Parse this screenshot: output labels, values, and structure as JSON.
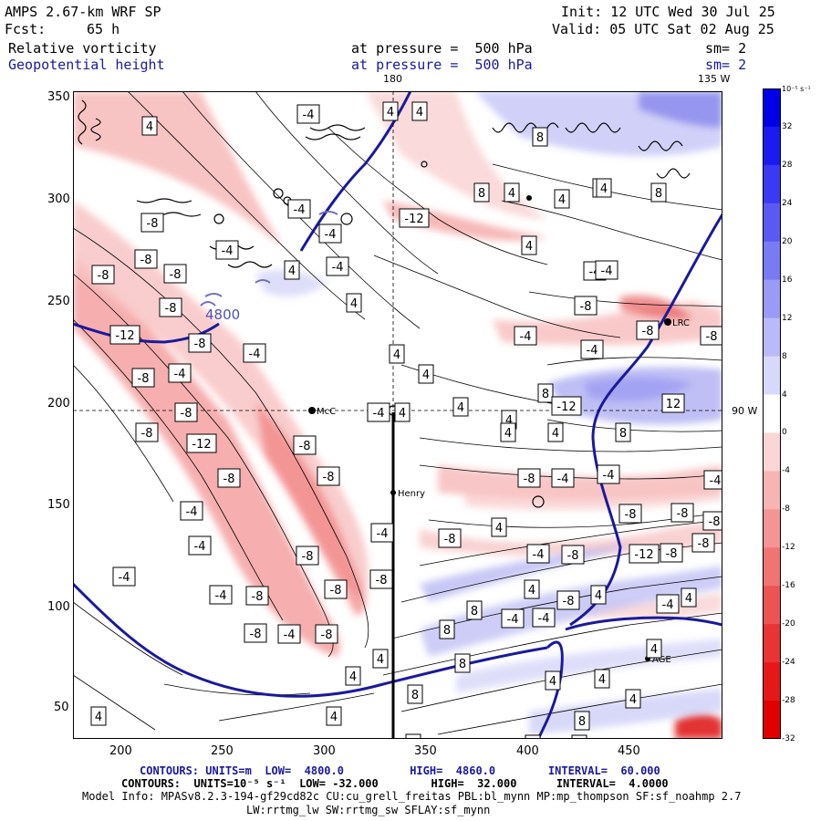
{
  "header": {
    "model": "AMPS 2.67-km WRF SP",
    "fcst_label": "Fcst:",
    "fcst_value": "65 h",
    "init": "Init: 12 UTC Wed 30 Jul 25",
    "valid": "Valid: 05 UTC Sat 02 Aug 25",
    "field1_name": "Relative vorticity",
    "field1_level": "at pressure =  500 hPa",
    "field1_sm": "sm= 2",
    "field2_name": "Geopotential height",
    "field2_level": "at pressure =  500 hPa",
    "field2_sm": "sm= 2"
  },
  "map": {
    "meridian_labels": [
      "180",
      "135 W"
    ],
    "parallel_label": "90 W",
    "stations": [
      "McC",
      "Henry",
      "LRC",
      "AGE"
    ],
    "height_label": "4800",
    "colors": {
      "frame": "#000000",
      "height_contour": "#1a1a9a",
      "positive": "#2a2ad9",
      "negative": "#e02020"
    }
  },
  "axes": {
    "x_ticks": [
      "200",
      "250",
      "300",
      "350",
      "400",
      "450"
    ],
    "y_ticks": [
      "350",
      "300",
      "250",
      "200",
      "150",
      "100",
      "50"
    ]
  },
  "colorbar": {
    "unit": "10⁻⁵ s⁻¹",
    "levels": [
      "32",
      "28",
      "24",
      "20",
      "16",
      "12",
      "8",
      "4",
      "0",
      "-4",
      "-8",
      "-12",
      "-16",
      "-20",
      "-24",
      "-28",
      "-32"
    ],
    "colors": [
      "#0000e6",
      "#1b1bf0",
      "#3a3af2",
      "#5a5af3",
      "#7a7af5",
      "#9a9af7",
      "#babafa",
      "#d8d8fc",
      "#ffffff",
      "#fcd6d6",
      "#f8b4b4",
      "#f49494",
      "#f07474",
      "#ec5454",
      "#e83434",
      "#e41818",
      "#e00000"
    ]
  },
  "labels": {
    "contour_values": [
      "4",
      "-4",
      "8",
      "-8",
      "-12",
      "12"
    ]
  },
  "footer": {
    "line1": "CONTOURS: UNITS=m  LOW=  4800.0          HIGH=  4860.0        INTERVAL=  60.000",
    "line2": "CONTOURS:  UNITS=10⁻⁵ s⁻¹  LOW= -32.000        HIGH=  32.000      INTERVAL=  4.0000",
    "line3": "Model Info: MPASv8.2.3-194-gf29cd82c CU:cu_grell_freitas PBL:bl_mynn MP:mp_thompson SF:sf_noahmp 2.7",
    "line4": "LW:rrtmg_lw SW:rrtmg_sw SFLAY:sf_mynn"
  }
}
